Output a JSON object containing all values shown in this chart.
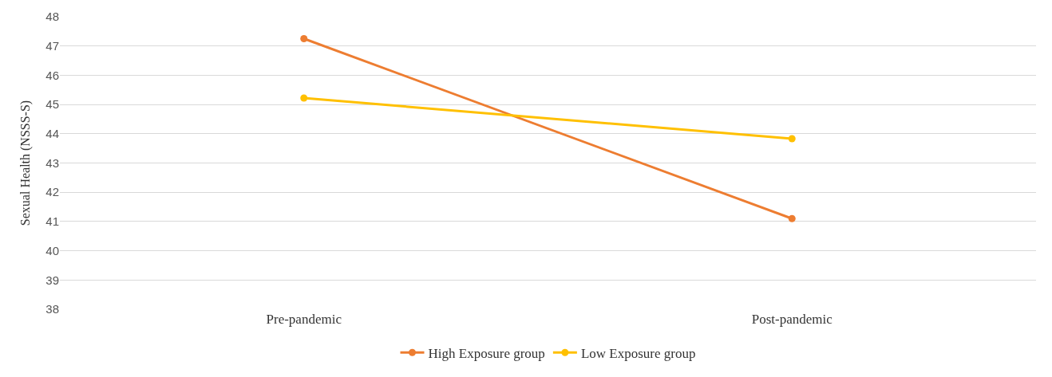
{
  "chart_data": {
    "type": "line",
    "ylabel": "Sexual Health (NSSS-S)",
    "categories": [
      "Pre-pandemic",
      "Post-pandemic"
    ],
    "series": [
      {
        "name": "High Exposure group",
        "color": "#ed7d31",
        "values": [
          47.25,
          41.1
        ]
      },
      {
        "name": "Low Exposure group",
        "color": "#ffc000",
        "values": [
          45.22,
          43.83
        ]
      }
    ],
    "ylim": [
      38,
      48
    ],
    "yticks": [
      38,
      39,
      40,
      41,
      42,
      43,
      44,
      45,
      46,
      47,
      48
    ],
    "grid": "y",
    "legend": "bottom",
    "marker": "circle",
    "line_style": "solid"
  }
}
